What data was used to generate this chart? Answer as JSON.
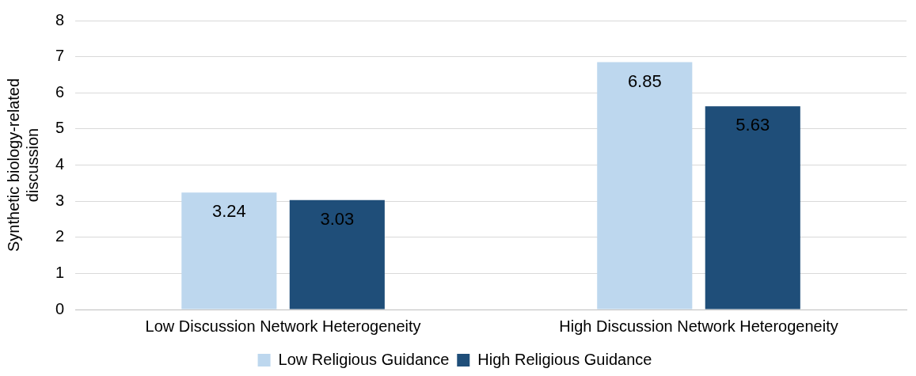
{
  "chart_data": {
    "type": "bar",
    "ylabel": "Synthetic biology-related discussion",
    "categories": [
      "Low Discussion Network Heterogeneity",
      "High Discussion Network Heterogeneity"
    ],
    "series": [
      {
        "name": "Low Religious Guidance",
        "color": "#bdd7ee",
        "values": [
          3.24,
          6.85
        ]
      },
      {
        "name": "High Religious Guidance",
        "color": "#1f4e79",
        "values": [
          3.03,
          5.63
        ]
      }
    ],
    "ylim": [
      0,
      8
    ],
    "yticks": [
      0,
      1,
      2,
      3,
      4,
      5,
      6,
      7,
      8
    ],
    "grid": "y",
    "legend": "bottom",
    "data_labels": true
  }
}
